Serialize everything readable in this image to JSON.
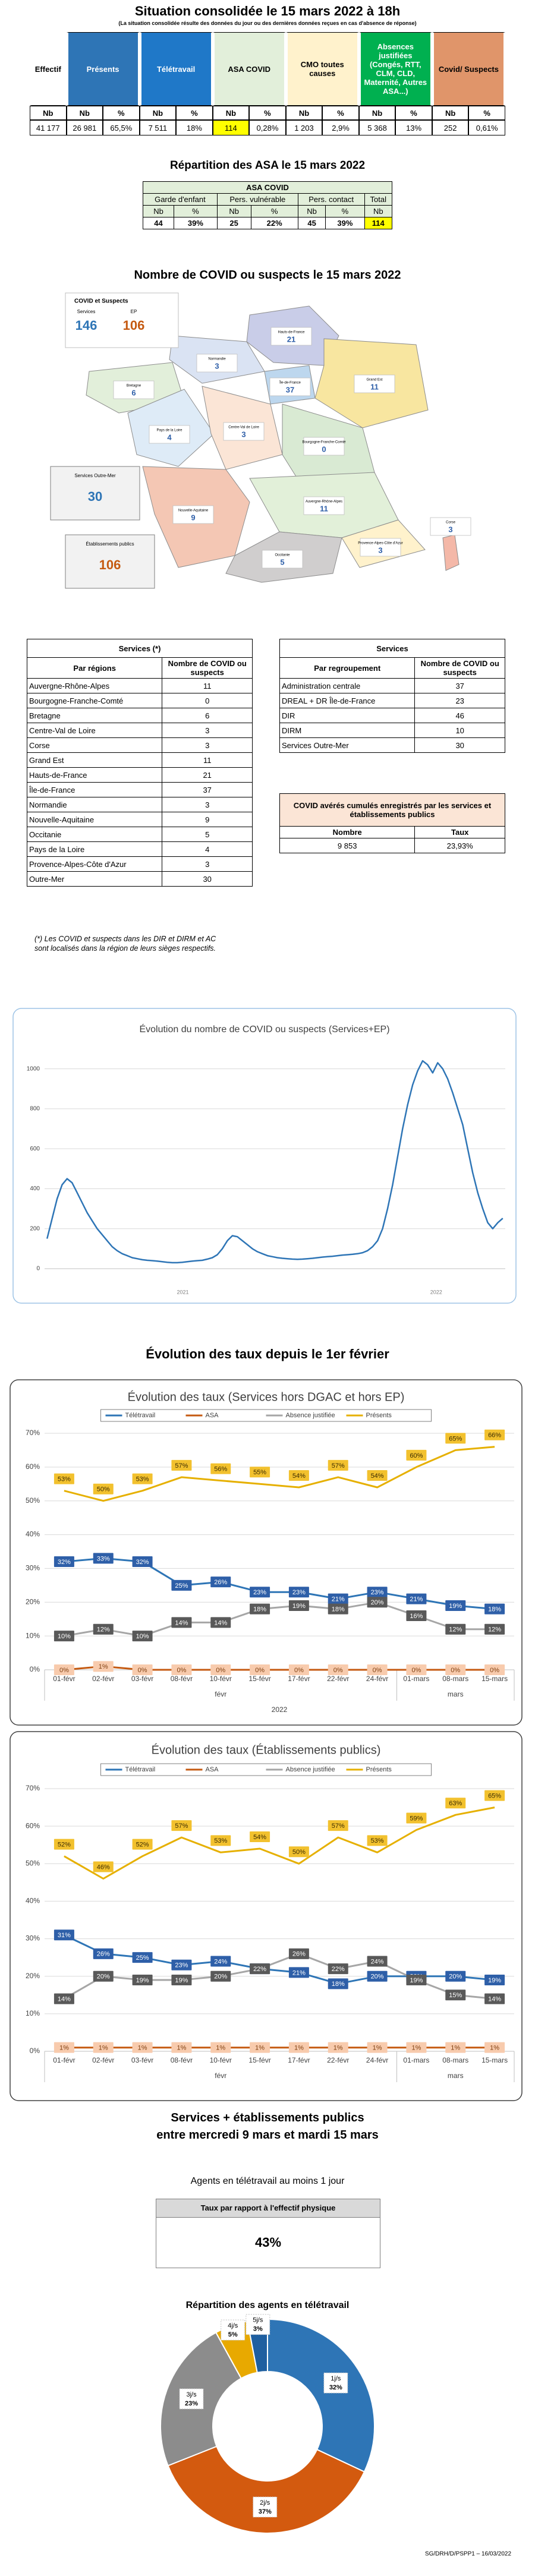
{
  "header": {
    "title": "Situation consolidée le 15 mars 2022 à 18h",
    "subtitle": "(La situation consolidée résulte des données du jour ou des dernières données reçues en cas d'absence de réponse)"
  },
  "situation": {
    "columns": [
      {
        "label": "Effectif",
        "color": "#ffffff",
        "text_color": "#000000",
        "sub": [
          "Nb"
        ],
        "values": [
          "41 177"
        ]
      },
      {
        "label": "Présents",
        "color": "#2e75b6",
        "text_color": "#ffffff",
        "sub": [
          "Nb",
          "%"
        ],
        "values": [
          "26 981",
          "65,5%"
        ]
      },
      {
        "label": "Télétravail",
        "color": "#1f78c8",
        "text_color": "#ffffff",
        "sub": [
          "Nb",
          "%"
        ],
        "values": [
          "7 511",
          "18%"
        ]
      },
      {
        "label": "ASA COVID",
        "color": "#e2efda",
        "text_color": "#000000",
        "sub": [
          "Nb",
          "%"
        ],
        "values": [
          "114",
          "0,28%"
        ],
        "value_colors": [
          "#ffff00",
          "#ffffff"
        ]
      },
      {
        "label": "CMO toutes causes",
        "color": "#fff2cc",
        "text_color": "#000000",
        "sub": [
          "Nb",
          "%"
        ],
        "values": [
          "1 203",
          "2,9%"
        ]
      },
      {
        "label": "Absences justifiées (Congés, RTT, CLM, CLD, Maternité, Autres ASA...)",
        "color": "#00b050",
        "text_color": "#ffffff",
        "sub": [
          "Nb",
          "%"
        ],
        "values": [
          "5 368",
          "13%"
        ]
      },
      {
        "label": "Covid/ Suspects",
        "color": "#e0956a",
        "text_color": "#000000",
        "sub": [
          "Nb",
          "%"
        ],
        "values": [
          "252",
          "0,61%"
        ]
      }
    ]
  },
  "asa": {
    "heading": "Répartition des ASA le 15 mars 2022",
    "title": "ASA COVID",
    "groups": [
      {
        "label": "Garde d'enfant",
        "sub": [
          "Nb",
          "%"
        ],
        "values": [
          "44",
          "39%"
        ]
      },
      {
        "label": "Pers. vulnérable",
        "sub": [
          "Nb",
          "%"
        ],
        "values": [
          "25",
          "22%"
        ]
      },
      {
        "label": "Pers. contact",
        "sub": [
          "Nb",
          "%"
        ],
        "values": [
          "45",
          "39%"
        ]
      },
      {
        "label": "Total",
        "sub": [
          "Nb"
        ],
        "values": [
          "114"
        ],
        "value_colors": [
          "#ffff00"
        ]
      }
    ]
  },
  "map": {
    "heading": "Nombre de COVID ou suspects le 15 mars 2022",
    "legend": {
      "title": "COVID et Suspects",
      "items": [
        {
          "label": "Services",
          "value": "146",
          "color": "#2e75b6"
        },
        {
          "label": "EP",
          "value": "106",
          "color": "#c55a11"
        }
      ]
    },
    "regions": [
      {
        "name": "Hauts-de-France",
        "value": "21",
        "color": "#c9cde8"
      },
      {
        "name": "Normandie",
        "value": "3",
        "color": "#dae3f3"
      },
      {
        "name": "Bretagne",
        "value": "6",
        "color": "#e2efda"
      },
      {
        "name": "Île-de-France",
        "value": "37",
        "color": "#bdd7ee"
      },
      {
        "name": "Grand Est",
        "value": "11",
        "color": "#f8e6a0"
      },
      {
        "name": "Pays de la Loire",
        "value": "4",
        "color": "#deebf7"
      },
      {
        "name": "Centre-Val de Loire",
        "value": "3",
        "color": "#fbe5d6"
      },
      {
        "name": "Bourgogne-Franche-Comté",
        "value": "0",
        "color": "#d9ead3"
      },
      {
        "name": "Nouvelle-Aquitaine",
        "value": "9",
        "color": "#f4c7b4"
      },
      {
        "name": "Auvergne-Rhône-Alpes",
        "value": "11",
        "color": "#e2f0d9"
      },
      {
        "name": "Occitanie",
        "value": "5",
        "color": "#d0cece"
      },
      {
        "name": "Provence-Alpes-Côte d'Azur",
        "value": "3",
        "color": "#fff2cc"
      },
      {
        "name": "Corse",
        "value": "3",
        "color": "#f4b8a8"
      }
    ],
    "insets": [
      {
        "name": "Services Outre-Mer",
        "value": "30",
        "color": "#2e75b6"
      },
      {
        "name": "Établissements publics",
        "value": "106",
        "color": "#c55a11"
      }
    ]
  },
  "regions_table": {
    "title": "Services (*)",
    "col1": "Par régions",
    "col2": "Nombre de COVID ou suspects",
    "rows": [
      [
        "Auvergne-Rhône-Alpes",
        "11"
      ],
      [
        "Bourgogne-Franche-Comté",
        "0"
      ],
      [
        "Bretagne",
        "6"
      ],
      [
        "Centre-Val de Loire",
        "3"
      ],
      [
        "Corse",
        "3"
      ],
      [
        "Grand Est",
        "11"
      ],
      [
        "Hauts-de-France",
        "21"
      ],
      [
        "Île-de-France",
        "37"
      ],
      [
        "Normandie",
        "3"
      ],
      [
        "Nouvelle-Aquitaine",
        "9"
      ],
      [
        "Occitanie",
        "5"
      ],
      [
        "Pays de la Loire",
        "4"
      ],
      [
        "Provence-Alpes-Côte d'Azur",
        "3"
      ],
      [
        "Outre-Mer",
        "30"
      ]
    ],
    "note": "(*) Les COVID et suspects dans les DIR et DIRM et AC sont localisés dans la région de leurs sièges respectifs."
  },
  "groups_table": {
    "title": "Services",
    "col1": "Par regroupement",
    "col2": "Nombre de COVID ou suspects",
    "rows": [
      [
        "Administration centrale",
        "37"
      ],
      [
        "DREAL + DR Île-de-France",
        "23"
      ],
      [
        "DIR",
        "46"
      ],
      [
        "DIRM",
        "10"
      ],
      [
        "Services Outre-Mer",
        "30"
      ]
    ]
  },
  "cumul": {
    "title": "COVID avérés cumulés enregistrés par les services et établissements publics",
    "col1": "Nombre",
    "col2": "Taux",
    "rows": [
      [
        "9 853",
        "23,93%"
      ]
    ]
  },
  "rates_heading": "Évolution des taux depuis le 1er février",
  "period_heading": [
    "Services + établissements publics",
    "entre mercredi 9 mars et mardi 15 mars"
  ],
  "telework": {
    "heading": "Agents en télétravail au moins 1 jour",
    "label": "Taux par rapport à l'effectif physique",
    "value": "43%"
  },
  "footer": "SG/DRH/D/PSPP1 – 16/03/2022",
  "chart_data": [
    {
      "type": "line",
      "title": "Évolution du nombre de COVID ou suspects (Services+EP)",
      "color": "#2e75b6",
      "categories": [
        null,
        null,
        null,
        null,
        null,
        null,
        null,
        null,
        null,
        null,
        null,
        null,
        null,
        null,
        null,
        null,
        null,
        null,
        null,
        null,
        null,
        null,
        null,
        null,
        null,
        null,
        null,
        null,
        null,
        null,
        null,
        null,
        null,
        null,
        null,
        null,
        null,
        null,
        null,
        null,
        null,
        null,
        null,
        null,
        null,
        null,
        null,
        null,
        null,
        null,
        null,
        null,
        null,
        null,
        null,
        null,
        null,
        null,
        null,
        null,
        null,
        null,
        null,
        null,
        null,
        null,
        null,
        null,
        null,
        null,
        null,
        null,
        null,
        null,
        null,
        null,
        null,
        null,
        null,
        null,
        null,
        null,
        null,
        null,
        null,
        null,
        null,
        null,
        null,
        null,
        null,
        null
      ],
      "values": [
        150,
        250,
        350,
        420,
        450,
        430,
        380,
        330,
        280,
        240,
        200,
        170,
        140,
        110,
        90,
        75,
        65,
        55,
        50,
        45,
        42,
        40,
        38,
        35,
        32,
        30,
        30,
        32,
        35,
        38,
        40,
        42,
        48,
        55,
        70,
        100,
        140,
        165,
        160,
        140,
        120,
        100,
        85,
        75,
        65,
        60,
        55,
        52,
        50,
        48,
        47,
        48,
        50,
        52,
        55,
        58,
        60,
        62,
        65,
        68,
        70,
        72,
        75,
        80,
        90,
        110,
        140,
        200,
        300,
        420,
        560,
        700,
        820,
        920,
        990,
        1040,
        1020,
        980,
        1030,
        1000,
        950,
        880,
        800,
        720,
        600,
        480,
        380,
        300,
        230,
        200,
        230,
        252
      ],
      "x_group_labels": [
        "2021",
        "2022"
      ],
      "ylim": [
        0,
        1100
      ],
      "yticks": [
        0,
        200,
        400,
        600,
        800,
        1000
      ],
      "grid": true
    },
    {
      "type": "line",
      "title": "Évolution des taux (Services hors DGAC et hors EP)",
      "categories": [
        "01-févr",
        "02-févr",
        "03-févr",
        "08-févr",
        "10-févr",
        "15-févr",
        "17-févr",
        "22-févr",
        "24-févr",
        "01-mars",
        "08-mars",
        "15-mars"
      ],
      "category_groups": [
        {
          "label": "févr",
          "count": 9
        },
        {
          "label": "mars",
          "count": 3
        }
      ],
      "year": "2022",
      "ylim": [
        0,
        70
      ],
      "yticks": [
        {
          "value": 0,
          "label": "0%"
        },
        {
          "value": 10,
          "label": "10%"
        },
        {
          "value": 20,
          "label": "20%"
        },
        {
          "value": 30,
          "label": "30%"
        },
        {
          "value": 40,
          "label": "40%"
        },
        {
          "value": 50,
          "label": "50%"
        },
        {
          "value": 60,
          "label": "60%"
        },
        {
          "value": 70,
          "label": "70%"
        }
      ],
      "grid": true,
      "series": [
        {
          "name": "Télétravail",
          "color": "#2e75b6",
          "label_fill": "#2e5fa8",
          "label_text": "#ffffff",
          "values": [
            32,
            33,
            32,
            25,
            26,
            23,
            23,
            21,
            23,
            21,
            19,
            18
          ],
          "value_labels": [
            "32%",
            "33%",
            "32%",
            "25%",
            "26%",
            "23%",
            "23%",
            "21%",
            "23%",
            "21%",
            "19%",
            "18%"
          ]
        },
        {
          "name": "ASA",
          "color": "#c55a11",
          "label_fill": "#f8cbad",
          "label_text": "#7f3f10",
          "values": [
            0,
            1,
            0,
            0,
            0,
            0,
            0,
            0,
            0,
            0,
            0,
            0
          ],
          "value_labels": [
            "0%",
            "1%",
            "0%",
            "0%",
            "0%",
            "0%",
            "0%",
            "0%",
            "0%",
            "0%",
            "0%",
            "0%"
          ]
        },
        {
          "name": "Absence justifiée",
          "color": "#a6a6a6",
          "label_fill": "#595959",
          "label_text": "#ffffff",
          "values": [
            10,
            12,
            10,
            14,
            14,
            18,
            19,
            18,
            20,
            16,
            12,
            12
          ],
          "value_labels": [
            "10%",
            "12%",
            "10%",
            "14%",
            "14%",
            "18%",
            "19%",
            "18%",
            "20%",
            "16%",
            "12%",
            "12%"
          ]
        },
        {
          "name": "Présents",
          "color": "#e6b000",
          "label_fill": "#f2c12e",
          "label_text": "#3a2a00",
          "values": [
            53,
            50,
            53,
            57,
            56,
            55,
            54,
            57,
            54,
            60,
            65,
            66
          ],
          "value_labels": [
            "53%",
            "50%",
            "53%",
            "57%",
            "56%",
            "55%",
            "54%",
            "57%",
            "54%",
            "60%",
            "65%",
            "66%"
          ]
        }
      ]
    },
    {
      "type": "line",
      "title": "Évolution des taux (Établissements publics)",
      "categories": [
        "01-févr",
        "02-févr",
        "03-févr",
        "08-févr",
        "10-févr",
        "15-févr",
        "17-févr",
        "22-févr",
        "24-févr",
        "01-mars",
        "08-mars",
        "15-mars"
      ],
      "category_groups": [
        {
          "label": "févr",
          "count": 9
        },
        {
          "label": "mars",
          "count": 3
        }
      ],
      "ylim": [
        0,
        70
      ],
      "yticks": [
        {
          "value": 0,
          "label": "0%"
        },
        {
          "value": 10,
          "label": "10%"
        },
        {
          "value": 20,
          "label": "20%"
        },
        {
          "value": 30,
          "label": "30%"
        },
        {
          "value": 40,
          "label": "40%"
        },
        {
          "value": 50,
          "label": "50%"
        },
        {
          "value": 60,
          "label": "60%"
        },
        {
          "value": 70,
          "label": "70%"
        }
      ],
      "grid": true,
      "series": [
        {
          "name": "Télétravail",
          "color": "#2e75b6",
          "label_fill": "#2e5fa8",
          "label_text": "#ffffff",
          "values": [
            31,
            26,
            25,
            23,
            24,
            22,
            21,
            18,
            20,
            20,
            20,
            19
          ],
          "value_labels": [
            "31%",
            "26%",
            "25%",
            "23%",
            "24%",
            "22%",
            "21%",
            "18%",
            "20%",
            "20%",
            "20%",
            "19%"
          ]
        },
        {
          "name": "ASA",
          "color": "#c55a11",
          "label_fill": "#f8cbad",
          "label_text": "#7f3f10",
          "values": [
            1,
            1,
            1,
            1,
            1,
            1,
            1,
            1,
            1,
            1,
            1,
            1
          ],
          "value_labels": [
            "1%",
            "1%",
            "1%",
            "1%",
            "1%",
            "1%",
            "1%",
            "1%",
            "1%",
            "1%",
            "1%",
            "1%"
          ]
        },
        {
          "name": "Absence justifiée",
          "color": "#a6a6a6",
          "label_fill": "#595959",
          "label_text": "#ffffff",
          "values": [
            14,
            20,
            19,
            19,
            20,
            22,
            26,
            22,
            24,
            19,
            15,
            14
          ],
          "value_labels": [
            "14%",
            "20%",
            "19%",
            "19%",
            "20%",
            "22%",
            "26%",
            "22%",
            "24%",
            "19%",
            "15%",
            "14%"
          ]
        },
        {
          "name": "Présents",
          "color": "#e6b000",
          "label_fill": "#f2c12e",
          "label_text": "#3a2a00",
          "values": [
            52,
            46,
            52,
            57,
            53,
            54,
            50,
            57,
            53,
            59,
            63,
            65
          ],
          "value_labels": [
            "52%",
            "46%",
            "52%",
            "57%",
            "53%",
            "54%",
            "50%",
            "57%",
            "53%",
            "59%",
            "63%",
            "65%"
          ]
        }
      ]
    },
    {
      "type": "pie",
      "title": "Répartition des agents en télétravail",
      "categories": [
        "1j/s",
        "2j/s",
        "3j/s",
        "4j/s",
        "5j/s"
      ],
      "values": [
        32,
        37,
        23,
        5,
        3
      ],
      "value_labels": [
        "32%",
        "37%",
        "23%",
        "5%",
        "3%"
      ],
      "colors": [
        "#2e75b6",
        "#d35a0f",
        "#8c8c8c",
        "#e8a900",
        "#1f5fa0"
      ]
    }
  ]
}
